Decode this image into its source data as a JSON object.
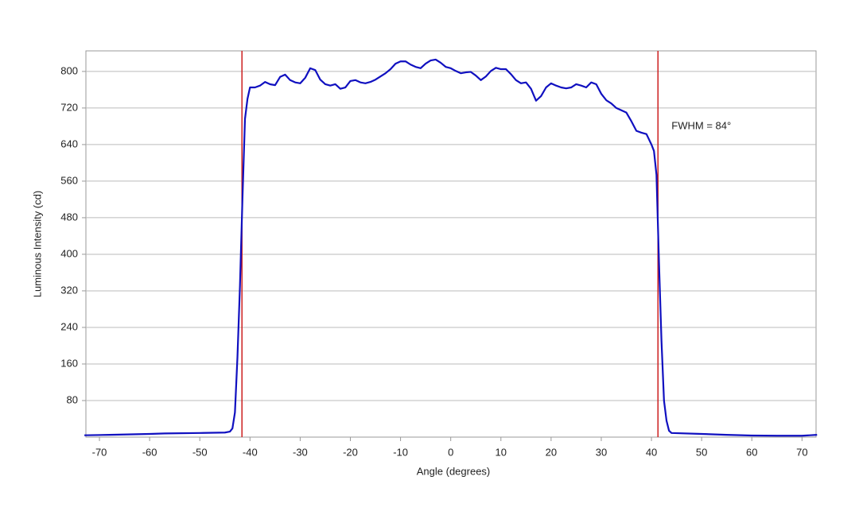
{
  "chart_data": {
    "type": "line",
    "xlabel": "Angle (degrees)",
    "ylabel": "Luminous Intensity (cd)",
    "xlim": [
      -72.7,
      72.8
    ],
    "ylim": [
      0,
      845
    ],
    "xticks": [
      -70,
      -60,
      -50,
      -40,
      -30,
      -20,
      -10,
      0,
      10,
      20,
      30,
      40,
      50,
      60,
      70
    ],
    "yticks": [
      80,
      160,
      240,
      320,
      400,
      480,
      560,
      640,
      720,
      800
    ],
    "grid": true,
    "vlines": {
      "color": "#cc2020",
      "x": [
        -41.6,
        41.3
      ]
    },
    "annotation": {
      "text": "FWHM = 84°",
      "x": 44,
      "y": 680
    },
    "series": [
      {
        "color": "#1010c0",
        "x": [
          -73,
          -68,
          -60,
          -57,
          -50,
          -45,
          -44,
          -43.5,
          -43,
          -42.5,
          -42,
          -41.5,
          -41,
          -40.5,
          -40,
          -39,
          -38,
          -37,
          -36,
          -35,
          -34,
          -33,
          -32,
          -31,
          -30,
          -29,
          -28,
          -27,
          -26,
          -25,
          -24,
          -23,
          -22,
          -21,
          -20,
          -19,
          -18,
          -17,
          -16,
          -15,
          -14,
          -13,
          -12,
          -11,
          -10,
          -9,
          -8,
          -7,
          -6,
          -5,
          -4,
          -3,
          -2,
          -1,
          0,
          1,
          2,
          3,
          4,
          5,
          6,
          7,
          8,
          9,
          10,
          11,
          12,
          13,
          14,
          15,
          16,
          17,
          18,
          19,
          20,
          21,
          22,
          23,
          24,
          25,
          26,
          27,
          28,
          29,
          30,
          31,
          32,
          33,
          34,
          35,
          36,
          37,
          38,
          39,
          40,
          40.5,
          41,
          41.5,
          42,
          42.5,
          43,
          43.5,
          44,
          50,
          55,
          60,
          65,
          70,
          73
        ],
        "values": [
          4,
          5,
          7,
          8,
          9,
          10,
          12,
          19,
          54,
          175,
          331,
          522,
          696,
          740,
          765,
          765,
          769,
          777,
          772,
          770,
          788,
          793,
          781,
          776,
          774,
          786,
          807,
          803,
          782,
          772,
          769,
          772,
          762,
          765,
          779,
          781,
          776,
          774,
          777,
          782,
          789,
          796,
          805,
          817,
          822,
          822,
          815,
          810,
          807,
          817,
          824,
          826,
          819,
          810,
          807,
          801,
          796,
          798,
          799,
          791,
          781,
          789,
          801,
          808,
          805,
          805,
          794,
          781,
          774,
          776,
          762,
          736,
          746,
          765,
          774,
          769,
          765,
          763,
          765,
          772,
          769,
          765,
          776,
          772,
          751,
          737,
          730,
          720,
          715,
          710,
          691,
          670,
          666,
          663,
          640,
          626,
          574,
          383,
          210,
          80,
          36,
          14,
          9,
          7,
          5,
          3.5,
          3,
          3,
          5
        ]
      }
    ]
  }
}
